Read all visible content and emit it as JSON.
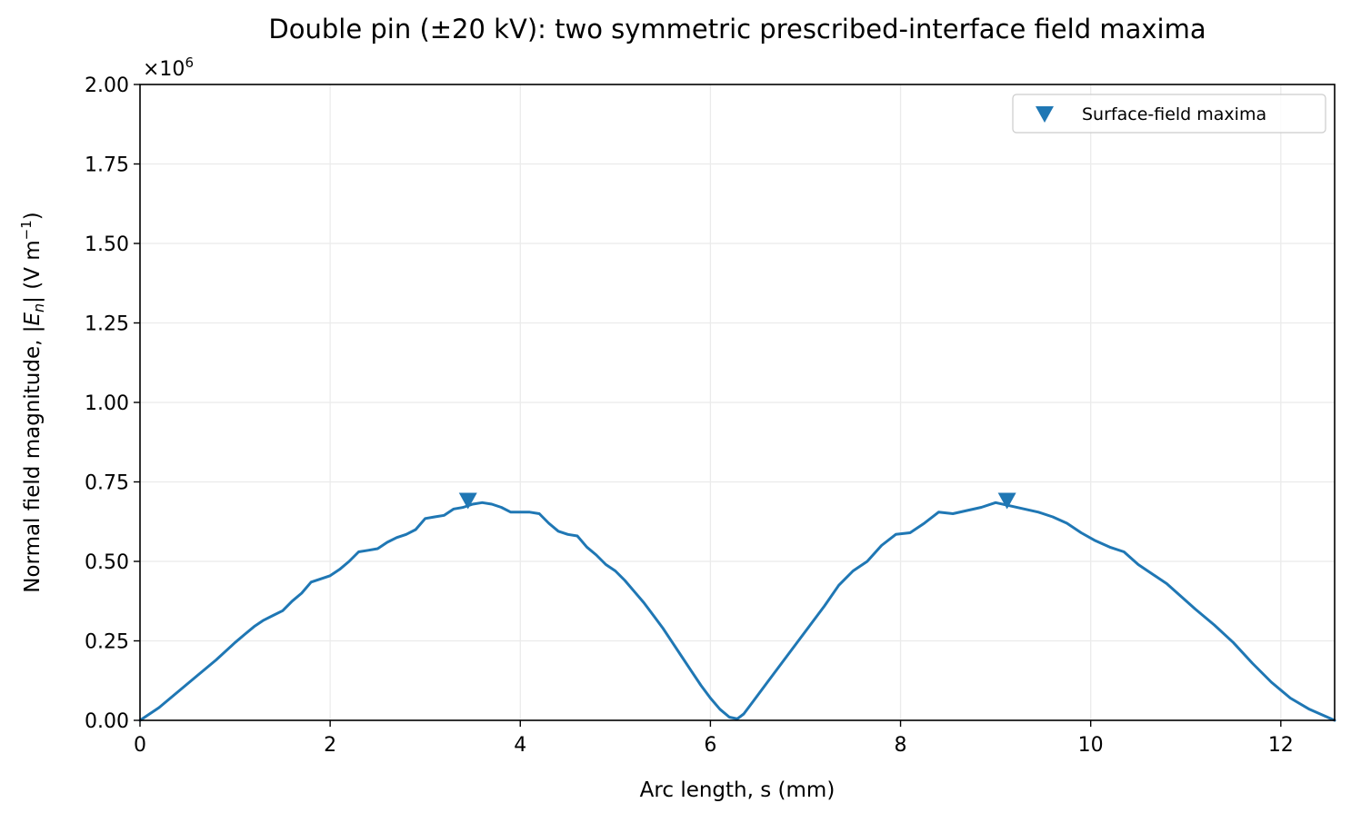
{
  "chart_data": {
    "type": "line",
    "title": "Double pin (±20 kV): two symmetric prescribed-interface field maxima",
    "xlabel": "Arc length, s (mm)",
    "ylabel": {
      "before": "Normal field magnitude, |",
      "E": "E",
      "n": "n",
      "middle": "| (V m",
      "exp": "−1",
      "after": ")"
    },
    "y_offset_text": {
      "base": "×10",
      "exp": "6"
    },
    "xlim": [
      0,
      12.566
    ],
    "ylim": [
      0,
      2.0
    ],
    "xticks": [
      0,
      2,
      4,
      6,
      8,
      10,
      12
    ],
    "xtick_labels": [
      "0",
      "2",
      "4",
      "6",
      "8",
      "10",
      "12"
    ],
    "yticks": [
      0,
      0.25,
      0.5,
      0.75,
      1.0,
      1.25,
      1.5,
      1.75,
      2.0
    ],
    "ytick_labels": [
      "0.00",
      "0.25",
      "0.50",
      "0.75",
      "1.00",
      "1.25",
      "1.50",
      "1.75",
      "2.00"
    ],
    "grid": true,
    "legend_position": "top-right",
    "colors": {
      "line": "#1f77b4",
      "grid": "#ebebeb"
    },
    "series": [
      {
        "name": "",
        "x": [
          0.0,
          0.2,
          0.4,
          0.6,
          0.8,
          1.0,
          1.1,
          1.2,
          1.3,
          1.4,
          1.5,
          1.6,
          1.7,
          1.8,
          1.9,
          2.0,
          2.1,
          2.2,
          2.3,
          2.4,
          2.5,
          2.6,
          2.7,
          2.8,
          2.9,
          3.0,
          3.1,
          3.2,
          3.3,
          3.4,
          3.5,
          3.6,
          3.7,
          3.8,
          3.9,
          4.0,
          4.1,
          4.2,
          4.3,
          4.4,
          4.5,
          4.6,
          4.7,
          4.8,
          4.9,
          5.0,
          5.1,
          5.2,
          5.3,
          5.4,
          5.5,
          5.6,
          5.7,
          5.8,
          5.9,
          6.0,
          6.1,
          6.2,
          6.283,
          6.35,
          6.45,
          6.6,
          6.75,
          6.9,
          7.05,
          7.2,
          7.35,
          7.5,
          7.65,
          7.8,
          7.95,
          8.1,
          8.25,
          8.4,
          8.55,
          8.7,
          8.85,
          9.0,
          9.15,
          9.3,
          9.45,
          9.6,
          9.75,
          9.9,
          10.05,
          10.2,
          10.35,
          10.5,
          10.65,
          10.8,
          10.95,
          11.1,
          11.3,
          11.5,
          11.7,
          11.9,
          12.1,
          12.3,
          12.566
        ],
        "values": [
          0.0,
          0.04,
          0.09,
          0.14,
          0.19,
          0.245,
          0.27,
          0.295,
          0.315,
          0.33,
          0.345,
          0.375,
          0.4,
          0.435,
          0.445,
          0.455,
          0.475,
          0.5,
          0.53,
          0.535,
          0.54,
          0.56,
          0.575,
          0.585,
          0.6,
          0.635,
          0.64,
          0.645,
          0.665,
          0.67,
          0.68,
          0.685,
          0.68,
          0.67,
          0.655,
          0.655,
          0.655,
          0.65,
          0.62,
          0.595,
          0.585,
          0.58,
          0.545,
          0.52,
          0.49,
          0.47,
          0.44,
          0.405,
          0.37,
          0.33,
          0.29,
          0.245,
          0.2,
          0.155,
          0.11,
          0.07,
          0.035,
          0.01,
          0.005,
          0.02,
          0.06,
          0.12,
          0.18,
          0.24,
          0.3,
          0.36,
          0.425,
          0.47,
          0.5,
          0.55,
          0.585,
          0.59,
          0.62,
          0.655,
          0.65,
          0.66,
          0.67,
          0.685,
          0.675,
          0.665,
          0.655,
          0.64,
          0.62,
          0.59,
          0.565,
          0.545,
          0.53,
          0.49,
          0.46,
          0.43,
          0.39,
          0.35,
          0.3,
          0.245,
          0.18,
          0.12,
          0.07,
          0.035,
          0.0
        ]
      },
      {
        "name": "Surface-field maxima",
        "type": "scatter",
        "marker": "triangle-down",
        "x": [
          3.45,
          9.12
        ],
        "values": [
          0.69,
          0.69
        ]
      }
    ]
  }
}
